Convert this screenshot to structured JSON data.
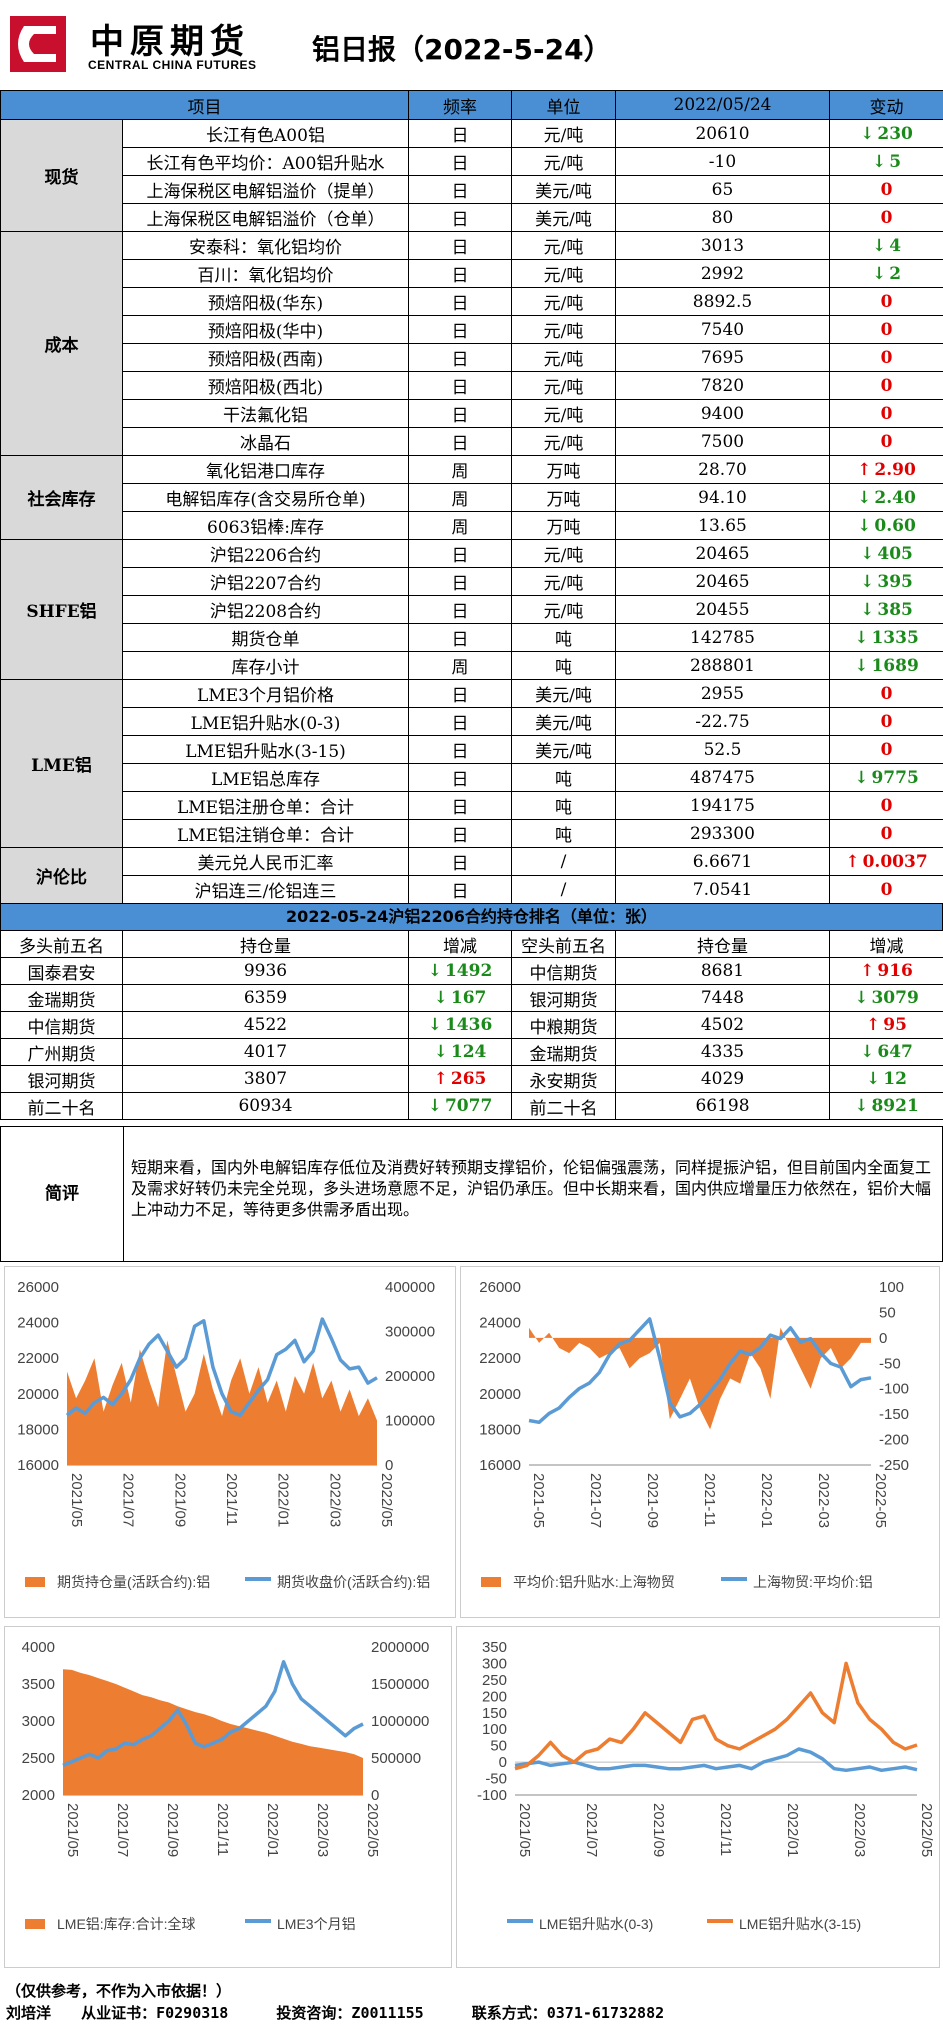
{
  "header": {
    "logo_cn": "中原期货",
    "logo_en": "CENTRAL CHINA FUTURES",
    "title": "铝日报（2022-5-24）",
    "accent": "#c8102e"
  },
  "main_table": {
    "columns": [
      "项目",
      "频率",
      "单位",
      "2022/05/24",
      "变动"
    ],
    "groups": [
      {
        "category": "现货",
        "rows": [
          {
            "item": "长江有色A00铝",
            "freq": "日",
            "unit": "元/吨",
            "value": "20610",
            "change": "230",
            "dir": "down"
          },
          {
            "item": "长江有色平均价：A00铝升贴水",
            "freq": "日",
            "unit": "元/吨",
            "value": "-10",
            "change": "5",
            "dir": "down"
          },
          {
            "item": "上海保税区电解铝溢价（提单）",
            "freq": "日",
            "unit": "美元/吨",
            "value": "65",
            "change": "0",
            "dir": "zero"
          },
          {
            "item": "上海保税区电解铝溢价（仓单）",
            "freq": "日",
            "unit": "美元/吨",
            "value": "80",
            "change": "0",
            "dir": "zero"
          }
        ]
      },
      {
        "category": "成本",
        "rows": [
          {
            "item": "安泰科：氧化铝均价",
            "freq": "日",
            "unit": "元/吨",
            "value": "3013",
            "change": "4",
            "dir": "down"
          },
          {
            "item": "百川：氧化铝均价",
            "freq": "日",
            "unit": "元/吨",
            "value": "2992",
            "change": "2",
            "dir": "down"
          },
          {
            "item": "预焙阳极(华东)",
            "freq": "日",
            "unit": "元/吨",
            "value": "8892.5",
            "change": "0",
            "dir": "zero"
          },
          {
            "item": "预焙阳极(华中)",
            "freq": "日",
            "unit": "元/吨",
            "value": "7540",
            "change": "0",
            "dir": "zero"
          },
          {
            "item": "预焙阳极(西南)",
            "freq": "日",
            "unit": "元/吨",
            "value": "7695",
            "change": "0",
            "dir": "zero"
          },
          {
            "item": "预焙阳极(西北)",
            "freq": "日",
            "unit": "元/吨",
            "value": "7820",
            "change": "0",
            "dir": "zero"
          },
          {
            "item": "干法氟化铝",
            "freq": "日",
            "unit": "元/吨",
            "value": "9400",
            "change": "0",
            "dir": "zero"
          },
          {
            "item": "冰晶石",
            "freq": "日",
            "unit": "元/吨",
            "value": "7500",
            "change": "0",
            "dir": "zero"
          }
        ]
      },
      {
        "category": "社会库存",
        "rows": [
          {
            "item": "氧化铝港口库存",
            "freq": "周",
            "unit": "万吨",
            "value": "28.70",
            "change": "2.90",
            "dir": "up"
          },
          {
            "item": "电解铝库存(含交易所仓单)",
            "freq": "周",
            "unit": "万吨",
            "value": "94.10",
            "change": "2.40",
            "dir": "down"
          },
          {
            "item": "6063铝棒:库存",
            "freq": "周",
            "unit": "万吨",
            "value": "13.65",
            "change": "0.60",
            "dir": "down"
          }
        ]
      },
      {
        "category": "SHFE铝",
        "rows": [
          {
            "item": "沪铝2206合约",
            "freq": "日",
            "unit": "元/吨",
            "value": "20465",
            "change": "405",
            "dir": "down"
          },
          {
            "item": "沪铝2207合约",
            "freq": "日",
            "unit": "元/吨",
            "value": "20465",
            "change": "395",
            "dir": "down"
          },
          {
            "item": "沪铝2208合约",
            "freq": "日",
            "unit": "元/吨",
            "value": "20455",
            "change": "385",
            "dir": "down"
          },
          {
            "item": "期货仓单",
            "freq": "日",
            "unit": "吨",
            "value": "142785",
            "change": "1335",
            "dir": "down"
          },
          {
            "item": "库存小计",
            "freq": "周",
            "unit": "吨",
            "value": "288801",
            "change": "1689",
            "dir": "down"
          }
        ]
      },
      {
        "category": "LME铝",
        "rows": [
          {
            "item": "LME3个月铝价格",
            "freq": "日",
            "unit": "美元/吨",
            "value": "2955",
            "change": "0",
            "dir": "zero"
          },
          {
            "item": "LME铝升贴水(0-3)",
            "freq": "日",
            "unit": "美元/吨",
            "value": "-22.75",
            "change": "0",
            "dir": "zero"
          },
          {
            "item": "LME铝升贴水(3-15)",
            "freq": "日",
            "unit": "美元/吨",
            "value": "52.5",
            "change": "0",
            "dir": "zero"
          },
          {
            "item": "LME铝总库存",
            "freq": "日",
            "unit": "吨",
            "value": "487475",
            "change": "9775",
            "dir": "down"
          },
          {
            "item": "LME铝注册仓单：合计",
            "freq": "日",
            "unit": "吨",
            "value": "194175",
            "change": "0",
            "dir": "zero"
          },
          {
            "item": "LME铝注销仓单：合计",
            "freq": "日",
            "unit": "吨",
            "value": "293300",
            "change": "0",
            "dir": "zero"
          }
        ]
      },
      {
        "category": "沪伦比",
        "rows": [
          {
            "item": "美元兑人民币汇率",
            "freq": "日",
            "unit": "/",
            "value": "6.6671",
            "change": "0.0037",
            "dir": "up"
          },
          {
            "item": "沪铝连三/伦铝连三",
            "freq": "日",
            "unit": "/",
            "value": "7.0541",
            "change": "0",
            "dir": "zero"
          }
        ]
      }
    ]
  },
  "positions": {
    "title": "2022-05-24沪铝2206合约持仓排名（单位：张）",
    "columns": [
      "多头前五名",
      "持仓量",
      "增减",
      "空头前五名",
      "持仓量",
      "增减"
    ],
    "rows": [
      {
        "long_name": "国泰君安",
        "long_pos": "9936",
        "long_chg": "1492",
        "long_dir": "down",
        "short_name": "中信期货",
        "short_pos": "8681",
        "short_chg": "916",
        "short_dir": "up"
      },
      {
        "long_name": "金瑞期货",
        "long_pos": "6359",
        "long_chg": "167",
        "long_dir": "down",
        "short_name": "银河期货",
        "short_pos": "7448",
        "short_chg": "3079",
        "short_dir": "down"
      },
      {
        "long_name": "中信期货",
        "long_pos": "4522",
        "long_chg": "1436",
        "long_dir": "down",
        "short_name": "中粮期货",
        "short_pos": "4502",
        "short_chg": "95",
        "short_dir": "up"
      },
      {
        "long_name": "广州期货",
        "long_pos": "4017",
        "long_chg": "124",
        "long_dir": "down",
        "short_name": "金瑞期货",
        "short_pos": "4335",
        "short_chg": "647",
        "short_dir": "down"
      },
      {
        "long_name": "银河期货",
        "long_pos": "3807",
        "long_chg": "265",
        "long_dir": "up",
        "short_name": "永安期货",
        "short_pos": "4029",
        "short_chg": "12",
        "short_dir": "down"
      },
      {
        "long_name": "前二十名",
        "long_pos": "60934",
        "long_chg": "7077",
        "long_dir": "down",
        "short_name": "前二十名",
        "short_pos": "66198",
        "short_chg": "8921",
        "short_dir": "down"
      }
    ]
  },
  "comment": {
    "label": "简评",
    "text": "短期来看，国内外电解铝库存低位及消费好转预期支撑铝价，伦铝偏强震荡，同样提振沪铝，但目前国内全面复工及需求好转仍未完全兑现，多头进场意愿不足，沪铝仍承压。但中长期来看，国内供应增量压力依然在，铝价大幅上冲动力不足，等待更多供需矛盾出现。"
  },
  "chart_data": [
    {
      "type": "area",
      "x_ticks": [
        "2021/05",
        "2021/07",
        "2021/09",
        "2021/11",
        "2022/01",
        "2022/03",
        "2022/05"
      ],
      "left_axis": {
        "ticks": [
          "26000",
          "24000",
          "22000",
          "20000",
          "18000",
          "16000"
        ],
        "min": 16000,
        "max": 26000
      },
      "right_axis": {
        "ticks": [
          "400000",
          "300000",
          "200000",
          "100000",
          "0"
        ],
        "min": 0,
        "max": 400000
      },
      "series": [
        {
          "name": "期货持仓量(活跃合约):铝",
          "axis": "right",
          "kind": "area",
          "color": "#ed7d31",
          "values": [
            210000,
            150000,
            190000,
            240000,
            120000,
            180000,
            230000,
            140000,
            260000,
            190000,
            130000,
            280000,
            200000,
            120000,
            160000,
            250000,
            170000,
            110000,
            190000,
            240000,
            160000,
            220000,
            140000,
            190000,
            120000,
            200000,
            160000,
            230000,
            150000,
            190000,
            120000,
            170000,
            110000,
            150000,
            100000
          ]
        },
        {
          "name": "期货收盘价(活跃合约):铝",
          "axis": "left",
          "kind": "line",
          "color": "#5b9bd5",
          "values": [
            18800,
            19200,
            18900,
            19500,
            19800,
            19400,
            20000,
            20800,
            22000,
            22800,
            23300,
            22400,
            21500,
            22000,
            23800,
            24100,
            21500,
            20000,
            19000,
            18800,
            19500,
            20200,
            20800,
            22200,
            22500,
            23000,
            21800,
            22400,
            24200,
            23100,
            21900,
            21400,
            21500,
            20600,
            20900
          ]
        }
      ]
    },
    {
      "type": "area",
      "x_ticks": [
        "2021-05",
        "2021-07",
        "2021-09",
        "2021-11",
        "2022-01",
        "2022-03",
        "2022-05"
      ],
      "left_axis": {
        "ticks": [
          "26000",
          "24000",
          "22000",
          "20000",
          "18000",
          "16000"
        ],
        "min": 16000,
        "max": 26000
      },
      "right_axis": {
        "ticks": [
          "100",
          "50",
          "0",
          "-50",
          "-100",
          "-150",
          "-200",
          "-250"
        ],
        "min": -250,
        "max": 100
      },
      "series": [
        {
          "name": "平均价:铝升贴水:上海物贸",
          "axis": "right",
          "kind": "area",
          "color": "#ed7d31",
          "values": [
            20,
            -10,
            10,
            -20,
            -30,
            -10,
            -20,
            -40,
            -30,
            -20,
            -60,
            -40,
            -30,
            -10,
            -160,
            -120,
            -80,
            -140,
            -180,
            -120,
            -80,
            -90,
            -30,
            -60,
            -120,
            20,
            -20,
            -60,
            -100,
            -40,
            -20,
            -60,
            -40,
            -10,
            -10
          ]
        },
        {
          "name": "上海物贸:平均价:铝",
          "axis": "left",
          "kind": "line",
          "color": "#5b9bd5",
          "values": [
            18500,
            18400,
            18900,
            19200,
            19800,
            20300,
            20600,
            21200,
            22200,
            22800,
            23000,
            23600,
            24200,
            22000,
            19500,
            18700,
            18900,
            19400,
            20100,
            20800,
            21700,
            22400,
            22200,
            22600,
            23300,
            23100,
            23700,
            22900,
            23100,
            22300,
            21700,
            21500,
            20400,
            20800,
            20900
          ]
        }
      ]
    },
    {
      "type": "area",
      "x_ticks": [
        "2021/05",
        "2021/07",
        "2021/09",
        "2021/11",
        "2022/01",
        "2022/03",
        "2022/05"
      ],
      "left_axis": {
        "ticks": [
          "4000",
          "3500",
          "3000",
          "2500",
          "2000"
        ],
        "min": 2000,
        "max": 4000
      },
      "right_axis": {
        "ticks": [
          "2000000",
          "1500000",
          "1000000",
          "500000",
          "0"
        ],
        "min": 0,
        "max": 2000000
      },
      "series": [
        {
          "name": "LME铝:库存:合计:全球",
          "axis": "right",
          "kind": "area",
          "color": "#ed7d31",
          "values": [
            1700000,
            1690000,
            1650000,
            1620000,
            1580000,
            1540000,
            1500000,
            1450000,
            1400000,
            1350000,
            1320000,
            1280000,
            1250000,
            1200000,
            1160000,
            1120000,
            1090000,
            1050000,
            1000000,
            960000,
            930000,
            900000,
            870000,
            840000,
            800000,
            760000,
            720000,
            690000,
            660000,
            640000,
            620000,
            600000,
            580000,
            550000,
            500000
          ]
        },
        {
          "name": "LME3个月铝",
          "axis": "left",
          "kind": "line",
          "color": "#5b9bd5",
          "values": [
            2400,
            2450,
            2500,
            2550,
            2500,
            2600,
            2620,
            2700,
            2680,
            2750,
            2800,
            2900,
            3000,
            3150,
            2950,
            2700,
            2650,
            2700,
            2750,
            2850,
            2900,
            3000,
            3100,
            3200,
            3400,
            3800,
            3500,
            3300,
            3200,
            3100,
            3000,
            2900,
            2800,
            2900,
            2960
          ]
        }
      ]
    },
    {
      "type": "line",
      "x_ticks": [
        "2021/05",
        "2021/07",
        "2021/09",
        "2021/11",
        "2022/01",
        "2022/03",
        "2022/05"
      ],
      "left_axis": {
        "ticks": [
          "350",
          "300",
          "250",
          "200",
          "150",
          "100",
          "50",
          "0",
          "-50",
          "-100"
        ],
        "min": -100,
        "max": 350
      },
      "series": [
        {
          "name": "LME铝升贴水(0-3)",
          "axis": "left",
          "kind": "line",
          "color": "#5b9bd5",
          "values": [
            -10,
            -5,
            0,
            -10,
            -5,
            0,
            -10,
            -20,
            -20,
            -15,
            -10,
            -10,
            -15,
            -20,
            -20,
            -15,
            -10,
            -20,
            -15,
            -10,
            -20,
            0,
            10,
            20,
            40,
            30,
            10,
            -20,
            -25,
            -20,
            -15,
            -25,
            -20,
            -15,
            -23
          ]
        },
        {
          "name": "LME铝升贴水(3-15)",
          "axis": "left",
          "kind": "line",
          "color": "#ed7d31",
          "values": [
            -20,
            -10,
            20,
            60,
            20,
            0,
            30,
            40,
            70,
            60,
            100,
            150,
            120,
            90,
            60,
            130,
            140,
            70,
            50,
            40,
            60,
            80,
            100,
            130,
            170,
            210,
            150,
            120,
            300,
            180,
            130,
            100,
            60,
            40,
            52
          ]
        }
      ]
    }
  ],
  "disclaimer": "（仅供参考，不作为入市依据！）",
  "footer": {
    "author": "刘培洋",
    "cert_label": "从业证书：",
    "cert": "F0290318",
    "consult_label": "投资咨询：",
    "consult": "Z0011155",
    "contact_label": "联系方式：",
    "contact": "0371-61732882"
  }
}
